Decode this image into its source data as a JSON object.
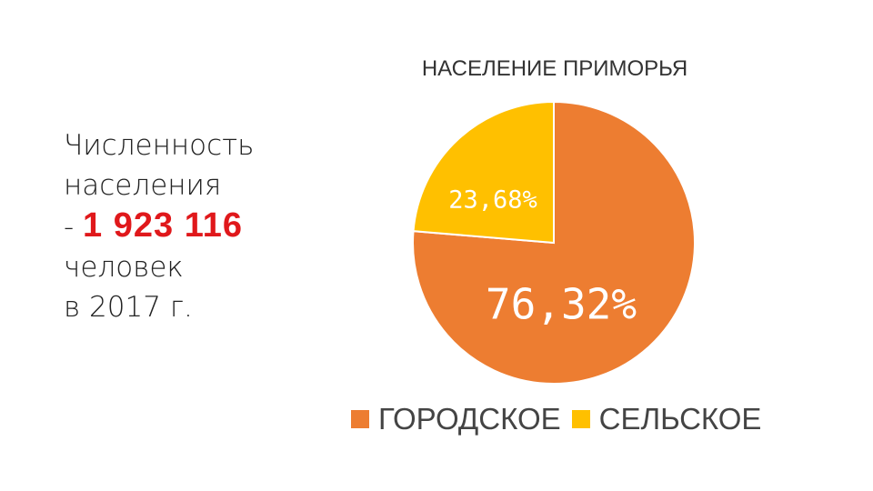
{
  "info": {
    "line1": "Численность",
    "line2": "населения",
    "dash": "- ",
    "population": "1 923 116",
    "line4": "человек",
    "line5": "в 2017 г."
  },
  "chart_data": {
    "type": "pie",
    "title": "НАСЕЛЕНИЕ ПРИМОРЬЯ",
    "categories": [
      "ГОРОДСКОЕ",
      "СЕЛЬСКОЕ"
    ],
    "values": [
      76.32,
      23.68
    ],
    "labels": [
      "76,32%",
      "23,68%"
    ],
    "colors": [
      "#ed7d31",
      "#ffc000"
    ],
    "legend_position": "bottom"
  }
}
